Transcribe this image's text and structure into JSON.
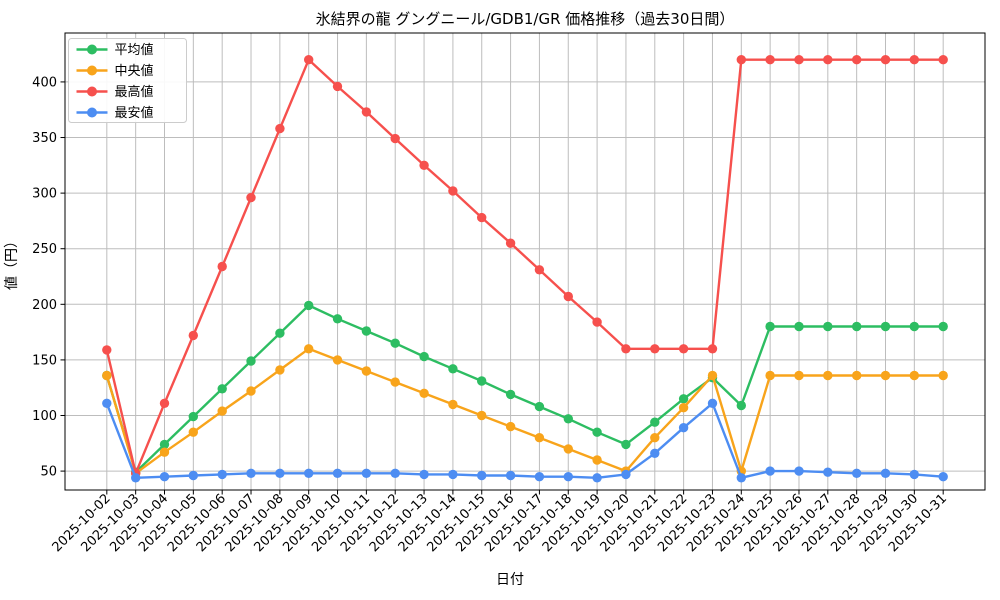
{
  "chart_data": {
    "type": "line",
    "title": "氷結界の龍 グングニール/GDB1/GR 価格推移（過去30日間）",
    "xlabel": "日付",
    "ylabel": "値（円）",
    "x": [
      "2025-10-02",
      "2025-10-03",
      "2025-10-04",
      "2025-10-05",
      "2025-10-06",
      "2025-10-07",
      "2025-10-08",
      "2025-10-09",
      "2025-10-10",
      "2025-10-11",
      "2025-10-12",
      "2025-10-13",
      "2025-10-14",
      "2025-10-15",
      "2025-10-16",
      "2025-10-17",
      "2025-10-18",
      "2025-10-19",
      "2025-10-20",
      "2025-10-21",
      "2025-10-22",
      "2025-10-23",
      "2025-10-24",
      "2025-10-25",
      "2025-10-26",
      "2025-10-27",
      "2025-10-28",
      "2025-10-29",
      "2025-10-30",
      "2025-10-31"
    ],
    "series": [
      {
        "name": "平均値",
        "color": "#2dbd62",
        "values": [
          136,
          49,
          74,
          99,
          124,
          149,
          174,
          199,
          187,
          176,
          165,
          153,
          142,
          131,
          119,
          108,
          97,
          85,
          74,
          94,
          115,
          134,
          109,
          180,
          180,
          180,
          180,
          180,
          180,
          180
        ]
      },
      {
        "name": "中央値",
        "color": "#f8a41b",
        "values": [
          136,
          48,
          67,
          85,
          104,
          122,
          141,
          160,
          150,
          140,
          130,
          120,
          110,
          100,
          90,
          80,
          70,
          60,
          50,
          80,
          107,
          136,
          50,
          136,
          136,
          136,
          136,
          136,
          136,
          136
        ]
      },
      {
        "name": "最高値",
        "color": "#f6504d",
        "values": [
          159,
          48,
          111,
          172,
          234,
          296,
          358,
          420,
          396,
          373,
          349,
          325,
          302,
          278,
          255,
          231,
          207,
          184,
          160,
          160,
          160,
          160,
          420,
          420,
          420,
          420,
          420,
          420,
          420,
          420
        ]
      },
      {
        "name": "最安値",
        "color": "#4d8df2",
        "values": [
          111,
          44,
          45,
          46,
          47,
          48,
          48,
          48,
          48,
          48,
          48,
          47,
          47,
          46,
          46,
          45,
          45,
          44,
          47,
          66,
          89,
          111,
          44,
          50,
          50,
          49,
          48,
          48,
          47,
          45
        ]
      }
    ],
    "yticks": [
      50,
      100,
      150,
      200,
      250,
      300,
      350,
      400
    ],
    "ylim": [
      33,
      444
    ],
    "grid": true,
    "grid_color": "#bdbdbd",
    "legend_position": "upper-left",
    "marker": "circle"
  }
}
